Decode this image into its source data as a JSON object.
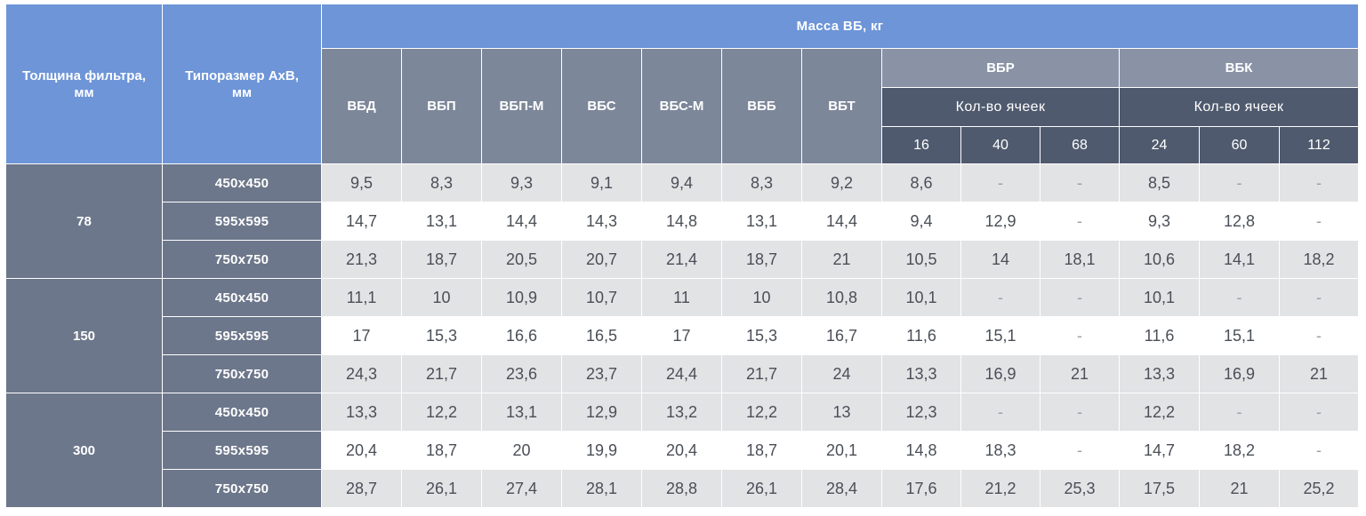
{
  "headers": {
    "thickness": "Толщина фильтра, мм",
    "size": "Типоразмер АхВ, мм",
    "mass": "Масса ВБ, кг",
    "types": [
      "ВБД",
      "ВБП",
      "ВБП-М",
      "ВБС",
      "ВБС-М",
      "ВББ",
      "ВБТ"
    ],
    "vbr": "ВБР",
    "vbk": "ВБК",
    "cells_label": "Кол-во ячеек",
    "vbr_cells": [
      "16",
      "40",
      "68"
    ],
    "vbk_cells": [
      "24",
      "60",
      "112"
    ]
  },
  "groups": [
    {
      "thickness": "78",
      "rows": [
        {
          "size": "450х450",
          "values": [
            "9,5",
            "8,3",
            "9,3",
            "9,1",
            "9,4",
            "8,3",
            "9,2",
            "8,6",
            "-",
            "-",
            "8,5",
            "-",
            "-"
          ]
        },
        {
          "size": "595х595",
          "values": [
            "14,7",
            "13,1",
            "14,4",
            "14,3",
            "14,8",
            "13,1",
            "14,4",
            "9,4",
            "12,9",
            "-",
            "9,3",
            "12,8",
            "-"
          ]
        },
        {
          "size": "750х750",
          "values": [
            "21,3",
            "18,7",
            "20,5",
            "20,7",
            "21,4",
            "18,7",
            "21",
            "10,5",
            "14",
            "18,1",
            "10,6",
            "14,1",
            "18,2"
          ]
        }
      ]
    },
    {
      "thickness": "150",
      "rows": [
        {
          "size": "450х450",
          "values": [
            "11,1",
            "10",
            "10,9",
            "10,7",
            "11",
            "10",
            "10,8",
            "10,1",
            "-",
            "-",
            "10,1",
            "-",
            "-"
          ]
        },
        {
          "size": "595х595",
          "values": [
            "17",
            "15,3",
            "16,6",
            "16,5",
            "17",
            "15,3",
            "16,7",
            "11,6",
            "15,1",
            "-",
            "11,6",
            "15,1",
            "-"
          ]
        },
        {
          "size": "750х750",
          "values": [
            "24,3",
            "21,7",
            "23,6",
            "23,7",
            "24,4",
            "21,7",
            "24",
            "13,3",
            "16,9",
            "21",
            "13,3",
            "16,9",
            "21"
          ]
        }
      ]
    },
    {
      "thickness": "300",
      "rows": [
        {
          "size": "450х450",
          "values": [
            "13,3",
            "12,2",
            "13,1",
            "12,9",
            "13,2",
            "12,2",
            "13",
            "12,3",
            "-",
            "-",
            "12,2",
            "-",
            "-"
          ]
        },
        {
          "size": "595х595",
          "values": [
            "20,4",
            "18,7",
            "20",
            "19,9",
            "20,4",
            "18,7",
            "20,1",
            "14,8",
            "18,3",
            "-",
            "14,7",
            "18,2",
            "-"
          ]
        },
        {
          "size": "750х750",
          "values": [
            "28,7",
            "26,1",
            "27,4",
            "28,1",
            "28,8",
            "26,1",
            "28,4",
            "17,6",
            "21,2",
            "25,3",
            "17,5",
            "21",
            "25,2"
          ]
        }
      ]
    }
  ]
}
